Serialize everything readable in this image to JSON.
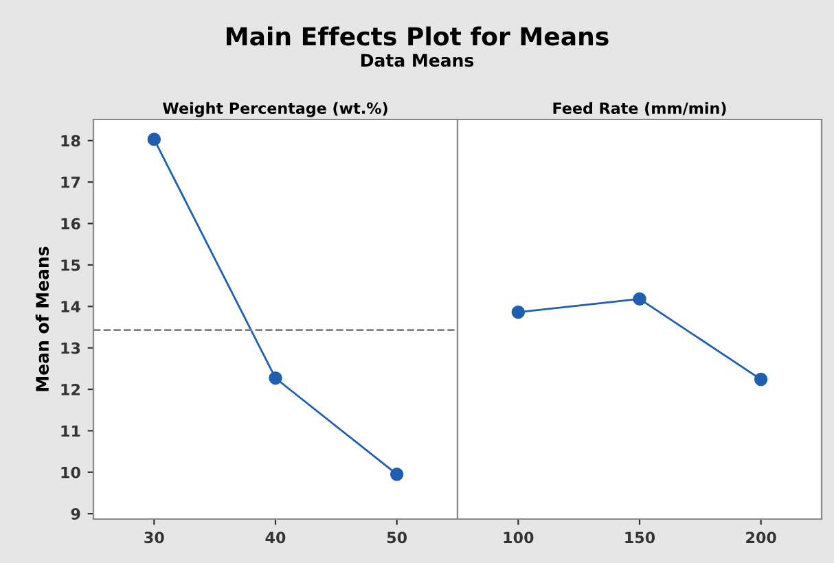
{
  "chart_data": [
    {
      "type": "line",
      "title": "Weight Percentage (wt.%)",
      "ylabel": "Mean of Means",
      "annotations": [
        "Main Effects Plot for Means",
        "Data Means"
      ],
      "x": [
        30,
        40,
        50
      ],
      "values": [
        18.03,
        12.27,
        9.95
      ],
      "color": "#1f5fb0",
      "marker": "circle",
      "xlim": [
        25,
        55
      ],
      "xticks": [
        30,
        40,
        50
      ],
      "ylim": [
        8.87,
        18.51
      ],
      "yticks": [
        9,
        10,
        11,
        12,
        13,
        14,
        15,
        16,
        17,
        18
      ],
      "ref_lines": [
        {
          "axis": "y",
          "value": 13.43,
          "color": "#808080",
          "line_style": "dashed"
        }
      ]
    },
    {
      "type": "line",
      "title": "Feed Rate (mm/min)",
      "x": [
        100,
        150,
        200
      ],
      "values": [
        13.86,
        14.18,
        12.24
      ],
      "color": "#1f5fb0",
      "marker": "circle",
      "xlim": [
        75,
        225
      ],
      "xticks": [
        100,
        150,
        200
      ],
      "ylim": [
        8.87,
        18.51
      ],
      "tick_labels": "x"
    }
  ]
}
